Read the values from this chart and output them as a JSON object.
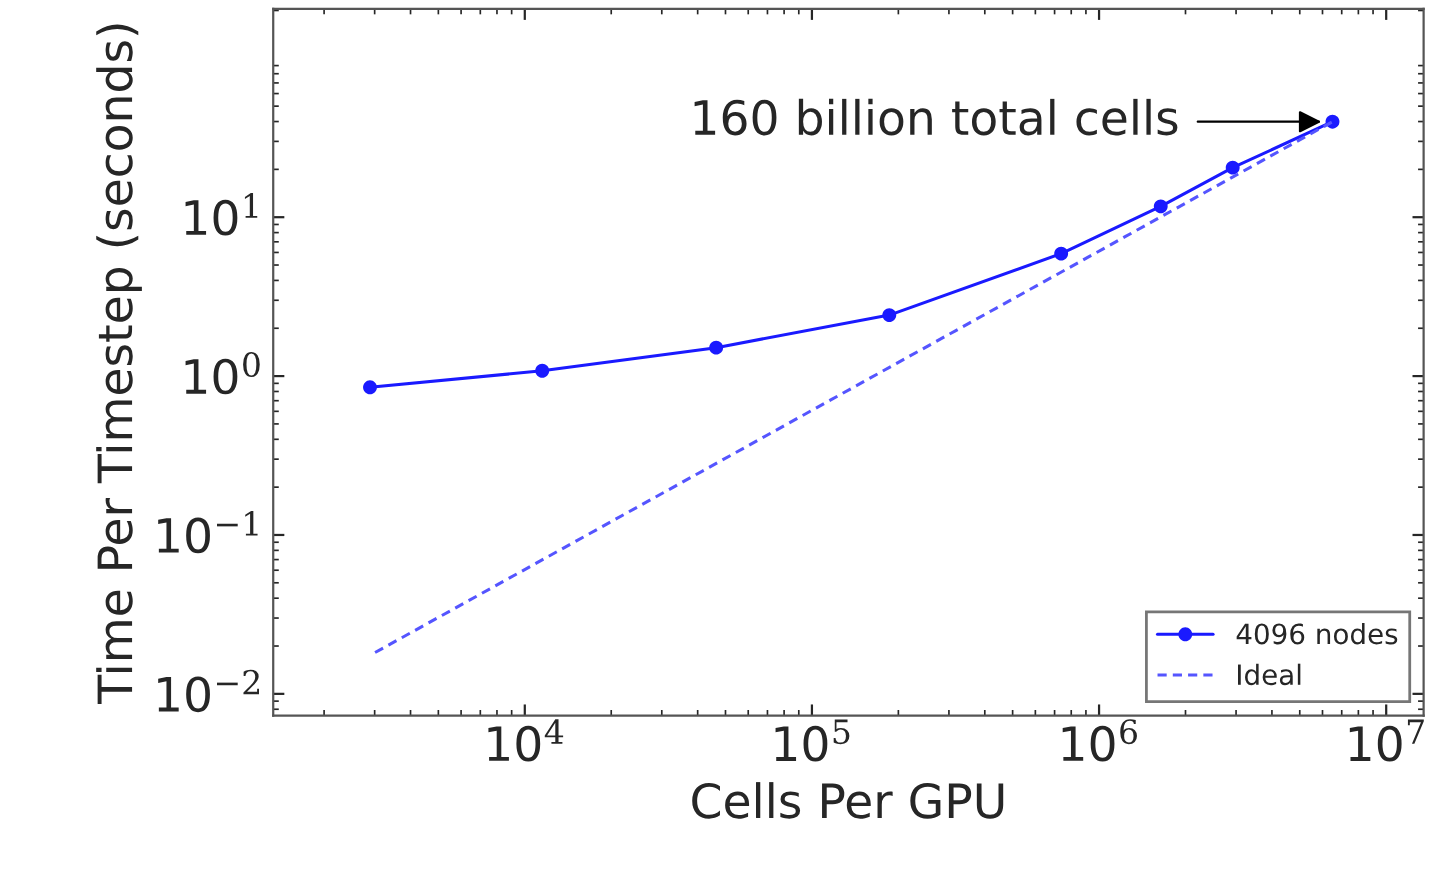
{
  "chart_data": {
    "type": "line",
    "xlabel": "Cells Per GPU",
    "ylabel": "Time Per Timestep (seconds)",
    "log": "xy",
    "grid": false,
    "legend": "bottom right",
    "xlim": [
      1330,
      13500000
    ],
    "ylim": [
      0.0073,
      205
    ],
    "xticks": [
      {
        "value": 10000,
        "label": "10$^{4}$"
      },
      {
        "value": 100000,
        "label": "10$^{5}$"
      },
      {
        "value": 1000000,
        "label": "10$^{6}$"
      },
      {
        "value": 10000000,
        "label": "10$^{7}$"
      }
    ],
    "yticks": [
      {
        "value": 0.01,
        "label": "10$^{−2}$"
      },
      {
        "value": 0.1,
        "label": "10$^{−1}$"
      },
      {
        "value": 1,
        "label": "10$^{0}$"
      },
      {
        "value": 10,
        "label": "10$^{1}$"
      }
    ],
    "series": [
      {
        "name": "4096 nodes",
        "color": "#1a1aff",
        "marker": "circle",
        "line_style": "solid",
        "x": [
          2890,
          11500,
          46400,
          186000,
          738000,
          1640000,
          2920000,
          6500000
        ],
        "values": [
          0.85,
          1.08,
          1.51,
          2.42,
          5.9,
          11.7,
          20.5,
          39.9
        ]
      },
      {
        "name": "Ideal",
        "color": "#5555ff",
        "marker": "none",
        "line_style": "dashed",
        "x": [
          3010,
          6500000
        ],
        "values": [
          0.0182,
          39.9
        ]
      }
    ],
    "annotations": [
      {
        "text": "160 billion total cells",
        "x": 6500000,
        "y": 39.9
      }
    ]
  }
}
